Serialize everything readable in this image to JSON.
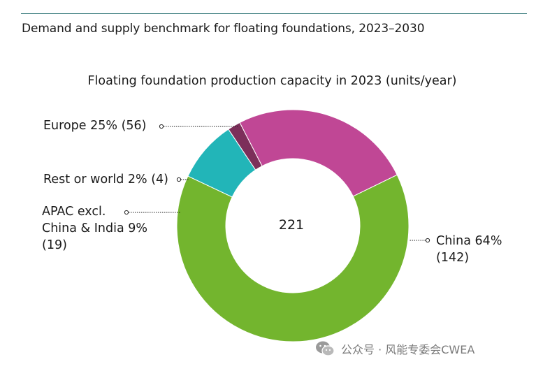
{
  "header": {
    "title": "Demand and supply benchmark for floating foundations, 2023–2030"
  },
  "colors": {
    "rule": "#3f7f80",
    "china": "#73b52e",
    "apac": "#22b5b8",
    "rest": "#7c2f5a",
    "europe": "#c04795"
  },
  "chart_data": {
    "type": "pie",
    "variant": "donut",
    "title": "Floating foundation production capacity in 2023 (units/year)",
    "center_label": "221",
    "slices": [
      {
        "key": "china",
        "name": "China",
        "value": 142,
        "percent": 64
      },
      {
        "key": "apac",
        "name": "APAC excl. China & India",
        "value": 19,
        "percent": 9
      },
      {
        "key": "rest",
        "name": "Rest or world",
        "value": 4,
        "percent": 2
      },
      {
        "key": "europe",
        "name": "Europe",
        "value": 56,
        "percent": 25
      }
    ],
    "labels": {
      "europe": "Europe 25% (56)",
      "rest": "Rest or world 2% (4)",
      "apac_line1": "APAC excl.",
      "apac_line2": "China & India  9%",
      "apac_line3": "(19)",
      "china_line1": "China 64%",
      "china_line2": "(142)"
    }
  },
  "watermark": {
    "text": "公众号 · 风能专委会CWEA",
    "icon": "wechat-icon"
  }
}
